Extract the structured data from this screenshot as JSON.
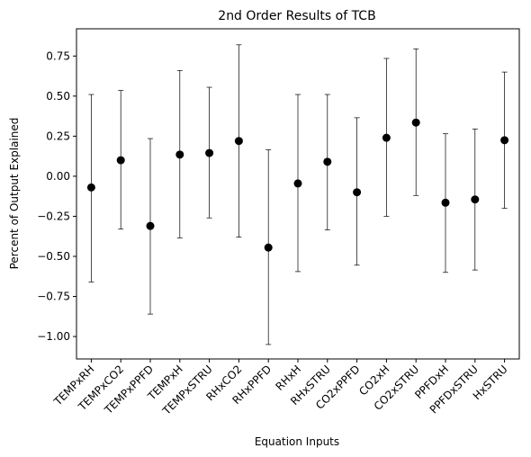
{
  "chart_data": {
    "type": "scatter",
    "title": "2nd Order Results of TCB",
    "xlabel": "Equation Inputs",
    "ylabel": "Percent of Output Explained",
    "categories": [
      "TEMPxRH",
      "TEMPxCO2",
      "TEMPxPPFD",
      "TEMPxH",
      "TEMPxSTRU",
      "RHxCO2",
      "RHxPPFD",
      "RHxH",
      "RHxSTRU",
      "CO2xPPFD",
      "CO2xH",
      "CO2xSTRU",
      "PPFDxH",
      "PPFDxSTRU",
      "HxSTRU"
    ],
    "values": [
      -0.07,
      0.1,
      -0.31,
      0.135,
      0.145,
      0.22,
      -0.445,
      -0.045,
      0.09,
      -0.1,
      0.24,
      0.335,
      -0.165,
      -0.145,
      0.225
    ],
    "error_low": [
      -0.66,
      -0.33,
      -0.86,
      -0.385,
      -0.26,
      -0.38,
      -1.05,
      -0.595,
      -0.335,
      -0.555,
      -0.25,
      -0.12,
      -0.6,
      -0.585,
      -0.2
    ],
    "error_high": [
      0.51,
      0.535,
      0.235,
      0.66,
      0.555,
      0.82,
      0.165,
      0.51,
      0.51,
      0.365,
      0.735,
      0.795,
      0.265,
      0.295,
      0.65
    ],
    "ylim": [
      -1.14,
      0.92
    ],
    "yticks": [
      -1.0,
      -0.75,
      -0.5,
      -0.25,
      0.0,
      0.25,
      0.5,
      0.75
    ],
    "ytick_labels": [
      "−1.00",
      "−0.75",
      "−0.50",
      "−0.25",
      "0.00",
      "0.25",
      "0.50",
      "0.75"
    ],
    "grid": false,
    "legend": "none",
    "colors": {
      "marker": "#000000",
      "errorbar": "#000000"
    }
  }
}
